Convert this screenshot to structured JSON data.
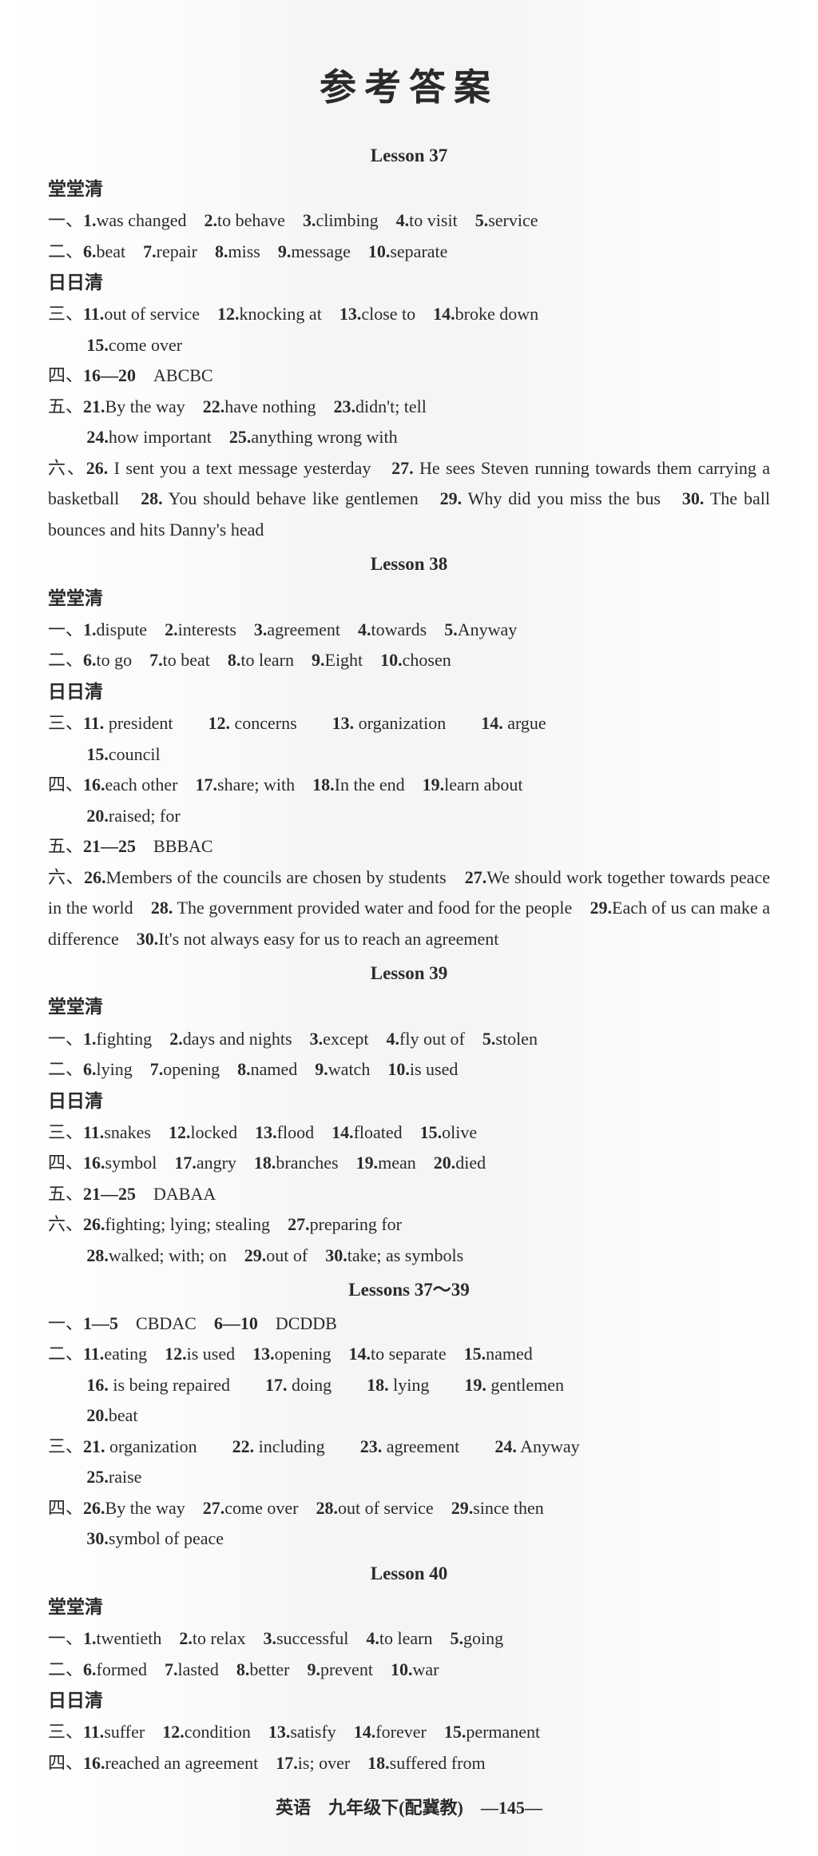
{
  "title": "参考答案",
  "footer": "英语　九年级下(配冀教)　—145—",
  "lessons": [
    {
      "heading": "Lesson 37",
      "groups": [
        {
          "label": "堂堂清",
          "lines": []
        },
        {
          "label": "",
          "lines": [
            "一、<b>1.</b>was changed　<b>2.</b>to behave　<b>3.</b>climbing　<b>4.</b>to visit　<b>5.</b>service",
            "二、<b>6.</b>beat　<b>7.</b>repair　<b>8.</b>miss　<b>9.</b>message　<b>10.</b>separate"
          ]
        },
        {
          "label": "日日清",
          "lines": []
        },
        {
          "label": "",
          "lines": [
            "三、<b>11.</b>out of service　<b>12.</b>knocking at　<b>13.</b>close to　<b>14.</b>broke down",
            "<span class='indent'><b>15.</b>come over</span>",
            "四、<b>16—20</b>　ABCBC",
            "五、<b>21.</b>By the way　<b>22.</b>have nothing　<b>23.</b>didn't; tell",
            "<span class='indent'><b>24.</b>how important　<b>25.</b>anything wrong with</span>",
            "六、<b>26.</b> I sent you a text message yesterday　<b>27.</b> He sees Steven running towards them carrying a basketball　<b>28.</b> You should behave like gentlemen　<b>29.</b> Why did you miss the bus　<b>30.</b> The ball bounces and hits Danny's head"
          ]
        }
      ]
    },
    {
      "heading": "Lesson 38",
      "groups": [
        {
          "label": "堂堂清",
          "lines": []
        },
        {
          "label": "",
          "lines": [
            "一、<b>1.</b>dispute　<b>2.</b>interests　<b>3.</b>agreement　<b>4.</b>towards　<b>5.</b>Anyway",
            "二、<b>6.</b>to go　<b>7.</b>to beat　<b>8.</b>to learn　<b>9.</b>Eight　<b>10.</b>chosen"
          ]
        },
        {
          "label": "日日清",
          "lines": []
        },
        {
          "label": "",
          "lines": [
            "三、<b>11.</b> president　　<b>12.</b> concerns　　<b>13.</b> organization　　<b>14.</b> argue",
            "<span class='indent'><b>15.</b>council</span>",
            "四、<b>16.</b>each other　<b>17.</b>share; with　<b>18.</b>In the end　<b>19.</b>learn about",
            "<span class='indent'><b>20.</b>raised; for</span>",
            "五、<b>21—25</b>　BBBAC",
            "六、<b>26.</b>Members of the councils are chosen by students　<b>27.</b>We should work together towards peace in the world　<b>28.</b> The government provided water and food for the people　<b>29.</b>Each of us can make a difference　<b>30.</b>It's not always easy for us to reach an agreement"
          ]
        }
      ]
    },
    {
      "heading": "Lesson 39",
      "groups": [
        {
          "label": "堂堂清",
          "lines": []
        },
        {
          "label": "",
          "lines": [
            "一、<b>1.</b>fighting　<b>2.</b>days and nights　<b>3.</b>except　<b>4.</b>fly out of　<b>5.</b>stolen",
            "二、<b>6.</b>lying　<b>7.</b>opening　<b>8.</b>named　<b>9.</b>watch　<b>10.</b>is used"
          ]
        },
        {
          "label": "日日清",
          "lines": []
        },
        {
          "label": "",
          "lines": [
            "三、<b>11.</b>snakes　<b>12.</b>locked　<b>13.</b>flood　<b>14.</b>floated　<b>15.</b>olive",
            "四、<b>16.</b>symbol　<b>17.</b>angry　<b>18.</b>branches　<b>19.</b>mean　<b>20.</b>died",
            "五、<b>21—25</b>　DABAA",
            "六、<b>26.</b>fighting; lying; stealing　<b>27.</b>preparing for",
            "<span class='indent'><b>28.</b>walked; with; on　<b>29.</b>out of　<b>30.</b>take; as symbols</span>"
          ]
        }
      ]
    },
    {
      "heading": "Lessons 37～39",
      "groups": [
        {
          "label": "",
          "lines": [
            "一、<b>1—5</b>　CBDAC　<b>6—10</b>　DCDDB",
            "二、<b>11.</b>eating　<b>12.</b>is used　<b>13.</b>opening　<b>14.</b>to separate　<b>15.</b>named",
            "<span class='indent'><b>16.</b> is being repaired　　<b>17.</b> doing　　<b>18.</b> lying　　<b>19.</b> gentlemen</span>",
            "<span class='indent'><b>20.</b>beat</span>",
            "三、<b>21.</b> organization　　<b>22.</b> including　　<b>23.</b> agreement　　<b>24.</b> Anyway",
            "<span class='indent'><b>25.</b>raise</span>",
            "四、<b>26.</b>By the way　<b>27.</b>come over　<b>28.</b>out of service　<b>29.</b>since then",
            "<span class='indent'><b>30.</b>symbol of peace</span>"
          ]
        }
      ]
    },
    {
      "heading": "Lesson 40",
      "groups": [
        {
          "label": "堂堂清",
          "lines": []
        },
        {
          "label": "",
          "lines": [
            "一、<b>1.</b>twentieth　<b>2.</b>to relax　<b>3.</b>successful　<b>4.</b>to learn　<b>5.</b>going",
            "二、<b>6.</b>formed　<b>7.</b>lasted　<b>8.</b>better　<b>9.</b>prevent　<b>10.</b>war"
          ]
        },
        {
          "label": "日日清",
          "lines": []
        },
        {
          "label": "",
          "lines": [
            "三、<b>11.</b>suffer　<b>12.</b>condition　<b>13.</b>satisfy　<b>14.</b>forever　<b>15.</b>permanent",
            "四、<b>16.</b>reached an agreement　<b>17.</b>is; over　<b>18.</b>suffered from"
          ]
        }
      ]
    }
  ]
}
